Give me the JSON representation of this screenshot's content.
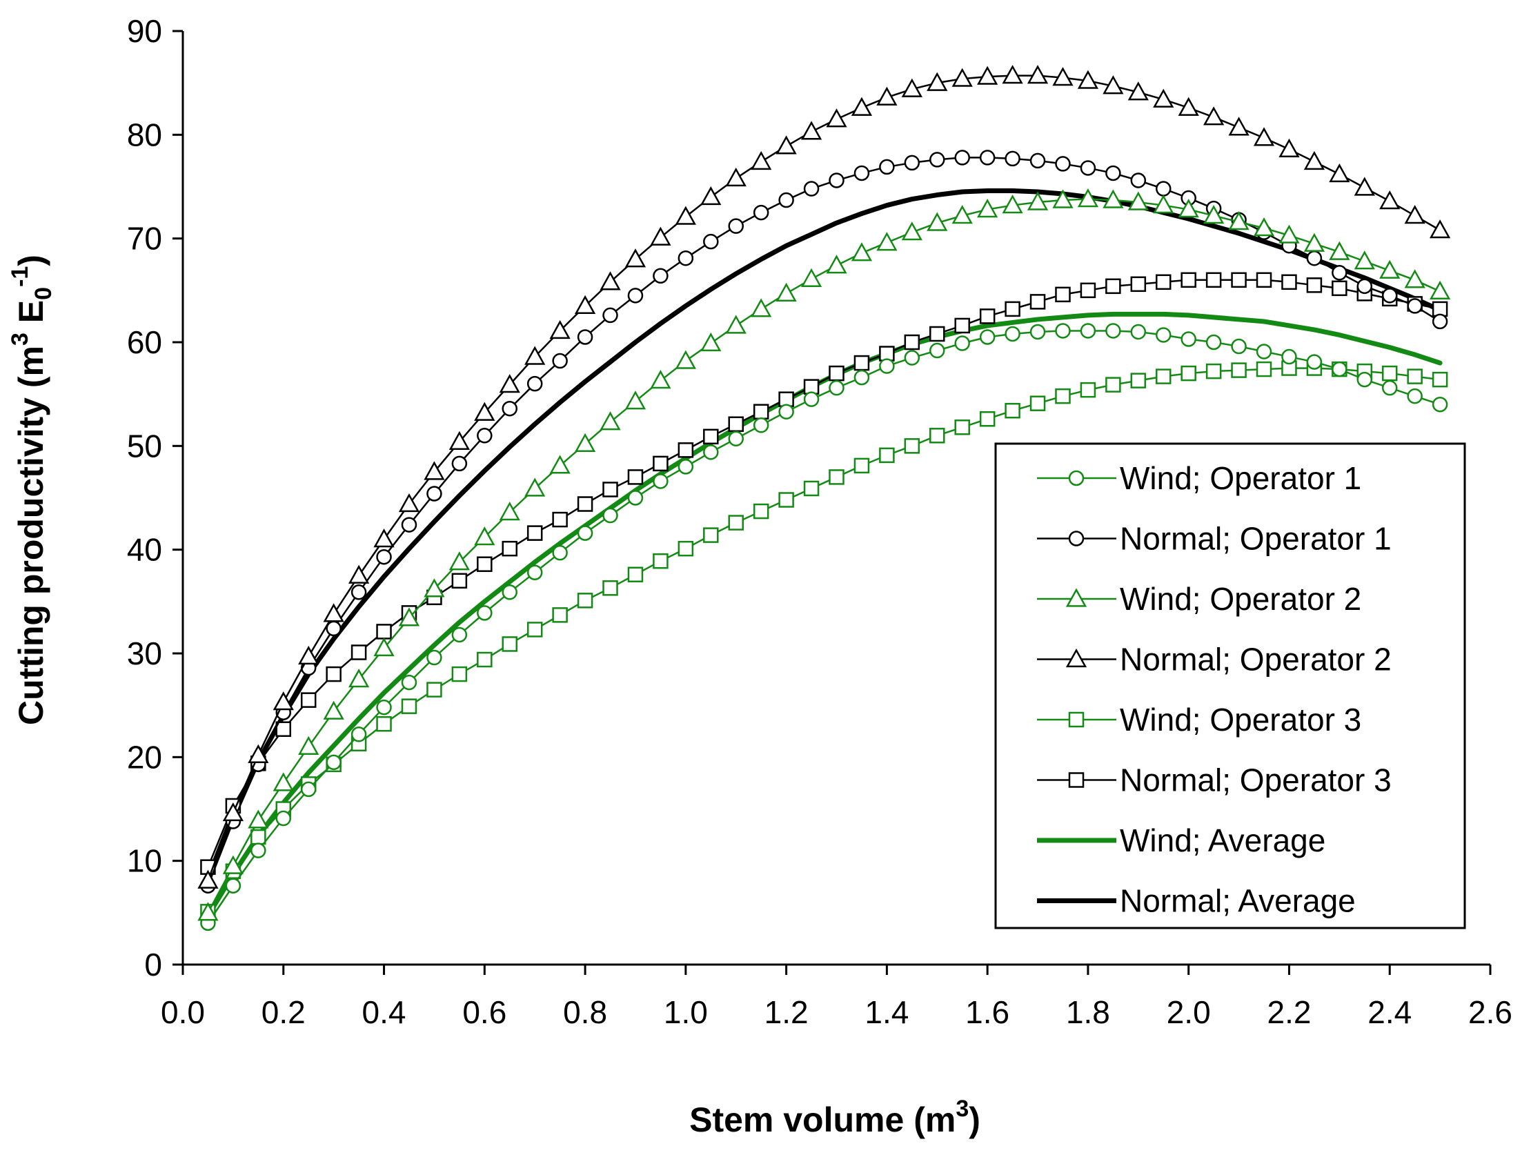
{
  "chart_data": {
    "type": "line",
    "xlabel": "Stem volume (m",
    "xlabel_sup": "3",
    "xlabel_end": ")",
    "ylabel_parts": {
      "pre": "Cutting productivity (m",
      "sup1": "3",
      "mid": " E",
      "sub": "0",
      "sup2": "-1",
      "end": ")"
    },
    "xlim": [
      0,
      2.6
    ],
    "ylim": [
      0,
      90
    ],
    "xticks": [
      "0.0",
      "0.2",
      "0.4",
      "0.6",
      "0.8",
      "1.0",
      "1.2",
      "1.4",
      "1.6",
      "1.8",
      "2.0",
      "2.2",
      "2.4",
      "2.6"
    ],
    "yticks": [
      "0",
      "10",
      "20",
      "30",
      "40",
      "50",
      "60",
      "70",
      "80",
      "90"
    ],
    "legend_position": "bottom-right",
    "colors": {
      "wind": "#138a13",
      "normal": "#000000"
    },
    "x": [
      0.05,
      0.1,
      0.15,
      0.2,
      0.25,
      0.3,
      0.35,
      0.4,
      0.45,
      0.5,
      0.55,
      0.6,
      0.65,
      0.7,
      0.75,
      0.8,
      0.85,
      0.9,
      0.95,
      1.0,
      1.05,
      1.1,
      1.15,
      1.2,
      1.25,
      1.3,
      1.35,
      1.4,
      1.45,
      1.5,
      1.55,
      1.6,
      1.65,
      1.7,
      1.75,
      1.8,
      1.85,
      1.9,
      1.95,
      2.0,
      2.05,
      2.1,
      2.15,
      2.2,
      2.25,
      2.3,
      2.35,
      2.4,
      2.45,
      2.5
    ],
    "series": [
      {
        "name": "Wind; Operator 1",
        "group": "wind",
        "marker": "circle",
        "width": "thin",
        "values": [
          4.0,
          7.6,
          11.0,
          14.1,
          16.9,
          19.5,
          22.2,
          24.8,
          27.2,
          29.6,
          31.8,
          33.9,
          35.9,
          37.8,
          39.7,
          41.6,
          43.3,
          45.0,
          46.6,
          48.0,
          49.4,
          50.7,
          52.0,
          53.3,
          54.5,
          55.6,
          56.6,
          57.7,
          58.5,
          59.2,
          59.9,
          60.5,
          60.8,
          61.0,
          61.1,
          61.1,
          61.1,
          61.0,
          60.7,
          60.3,
          60.0,
          59.6,
          59.1,
          58.6,
          58.1,
          57.4,
          56.4,
          55.6,
          54.8,
          54.0
        ]
      },
      {
        "name": "Normal; Operator 1",
        "group": "normal",
        "marker": "circle",
        "width": "thin",
        "values": [
          7.6,
          13.8,
          19.3,
          24.3,
          28.6,
          32.4,
          35.9,
          39.3,
          42.4,
          45.4,
          48.3,
          51.0,
          53.6,
          56.0,
          58.2,
          60.5,
          62.6,
          64.5,
          66.4,
          68.1,
          69.7,
          71.2,
          72.5,
          73.7,
          74.8,
          75.6,
          76.3,
          76.9,
          77.3,
          77.6,
          77.8,
          77.8,
          77.7,
          77.5,
          77.2,
          76.8,
          76.3,
          75.6,
          74.8,
          73.9,
          72.9,
          71.8,
          70.6,
          69.3,
          68.1,
          66.7,
          65.4,
          64.5,
          63.5,
          62.0
        ]
      },
      {
        "name": "Wind; Operator 2",
        "group": "wind",
        "marker": "triangle",
        "width": "thin",
        "values": [
          5.0,
          9.5,
          13.9,
          17.5,
          21.0,
          24.4,
          27.5,
          30.5,
          33.4,
          36.2,
          38.8,
          41.2,
          43.6,
          45.9,
          48.1,
          50.2,
          52.3,
          54.3,
          56.3,
          58.2,
          59.9,
          61.6,
          63.2,
          64.7,
          66.1,
          67.4,
          68.6,
          69.6,
          70.6,
          71.5,
          72.2,
          72.8,
          73.2,
          73.5,
          73.7,
          73.8,
          73.7,
          73.5,
          73.2,
          72.8,
          72.2,
          71.6,
          71.0,
          70.3,
          69.5,
          68.7,
          67.8,
          66.9,
          66.0,
          64.9
        ]
      },
      {
        "name": "Normal; Operator 2",
        "group": "normal",
        "marker": "triangle",
        "width": "thin",
        "values": [
          8.1,
          14.6,
          20.2,
          25.3,
          29.7,
          33.8,
          37.5,
          41.0,
          44.4,
          47.5,
          50.4,
          53.2,
          55.9,
          58.6,
          61.1,
          63.5,
          65.8,
          68.0,
          70.1,
          72.1,
          74.0,
          75.8,
          77.4,
          78.9,
          80.3,
          81.5,
          82.6,
          83.6,
          84.4,
          85.0,
          85.4,
          85.6,
          85.7,
          85.7,
          85.5,
          85.2,
          84.7,
          84.1,
          83.4,
          82.6,
          81.7,
          80.7,
          79.7,
          78.6,
          77.4,
          76.2,
          74.9,
          73.6,
          72.2,
          70.8
        ]
      },
      {
        "name": "Wind; Operator 3",
        "group": "wind",
        "marker": "square",
        "width": "thin",
        "values": [
          5.1,
          9.0,
          12.3,
          15.0,
          17.4,
          19.3,
          21.3,
          23.2,
          24.9,
          26.5,
          28.0,
          29.4,
          30.9,
          32.3,
          33.7,
          35.1,
          36.3,
          37.6,
          38.9,
          40.1,
          41.4,
          42.6,
          43.7,
          44.8,
          45.9,
          47.0,
          48.1,
          49.1,
          50.0,
          51.0,
          51.8,
          52.6,
          53.4,
          54.1,
          54.8,
          55.4,
          55.9,
          56.3,
          56.7,
          57.0,
          57.2,
          57.3,
          57.4,
          57.5,
          57.5,
          57.4,
          57.2,
          57.0,
          56.7,
          56.4
        ]
      },
      {
        "name": "Normal; Operator 3",
        "group": "normal",
        "marker": "square",
        "width": "thin",
        "values": [
          9.4,
          15.3,
          19.4,
          22.7,
          25.5,
          28.0,
          30.1,
          32.1,
          33.9,
          35.4,
          37.0,
          38.6,
          40.1,
          41.6,
          42.9,
          44.4,
          45.8,
          47.0,
          48.3,
          49.6,
          50.9,
          52.1,
          53.3,
          54.5,
          55.7,
          57.0,
          58.0,
          58.9,
          60.0,
          60.8,
          61.6,
          62.5,
          63.2,
          63.9,
          64.6,
          65.0,
          65.4,
          65.6,
          65.8,
          66.0,
          66.0,
          66.0,
          66.0,
          65.8,
          65.5,
          65.2,
          64.7,
          64.2,
          63.7,
          63.2
        ]
      },
      {
        "name": "Wind; Average",
        "group": "wind",
        "marker": "none",
        "width": "thick",
        "values": [
          4.7,
          8.7,
          12.4,
          15.6,
          18.5,
          21.1,
          23.7,
          26.2,
          28.5,
          30.8,
          33.0,
          35.0,
          36.9,
          38.8,
          40.6,
          42.3,
          44.0,
          45.7,
          47.3,
          48.8,
          50.3,
          51.7,
          53.1,
          54.4,
          55.7,
          56.9,
          58.0,
          58.9,
          59.8,
          60.5,
          61.1,
          61.6,
          61.9,
          62.2,
          62.4,
          62.6,
          62.7,
          62.7,
          62.7,
          62.6,
          62.4,
          62.2,
          62.0,
          61.6,
          61.2,
          60.7,
          60.1,
          59.5,
          58.8,
          58.0
        ]
      },
      {
        "name": "Normal; Average",
        "group": "normal",
        "marker": "none",
        "width": "thick",
        "values": [
          8.3,
          14.5,
          19.6,
          24.0,
          28.0,
          31.4,
          34.5,
          37.4,
          40.1,
          42.7,
          45.2,
          47.6,
          49.9,
          52.1,
          54.2,
          56.2,
          58.1,
          60.0,
          61.8,
          63.5,
          65.1,
          66.6,
          68.0,
          69.3,
          70.4,
          71.5,
          72.4,
          73.2,
          73.8,
          74.2,
          74.5,
          74.6,
          74.6,
          74.5,
          74.3,
          74.0,
          73.6,
          73.1,
          72.5,
          71.9,
          71.2,
          70.5,
          69.7,
          68.9,
          68.0,
          67.1,
          66.2,
          65.2,
          64.2,
          63.1
        ]
      }
    ]
  }
}
